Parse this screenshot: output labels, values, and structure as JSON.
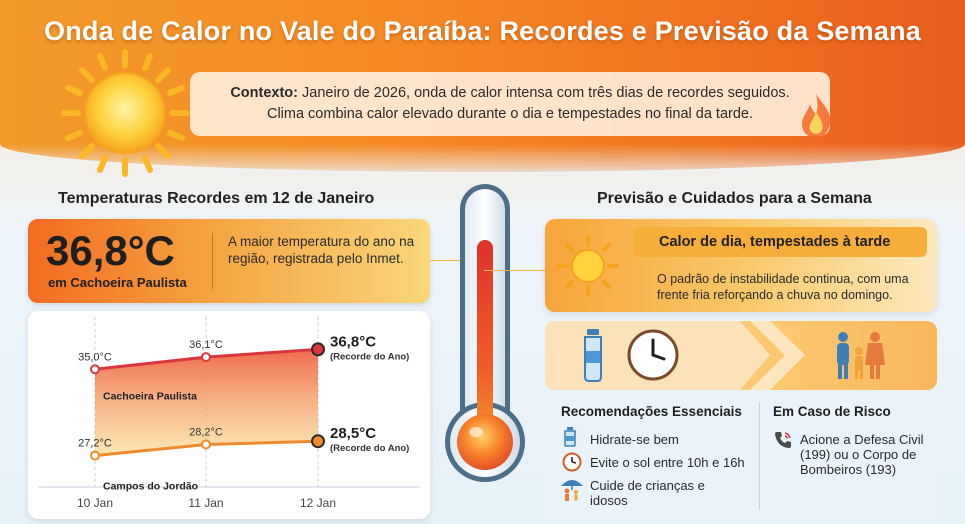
{
  "title": "Onda de Calor no Vale do Paraíba: Recordes e Previsão da Semana",
  "context": {
    "label": "Contexto:",
    "line1": "Janeiro de 2026, onda de calor intensa com três dias de recordes seguidos.",
    "line2": "Clima combina calor elevado durante o dia e tempestades no final da tarde."
  },
  "left": {
    "section_title": "Temperaturas Recordes em 12 de Janeiro",
    "record": {
      "value": "36,8°C",
      "city": "em Cachoeira Paulista",
      "desc": "A maior temperatura do ano na região, registrada pelo Inmet."
    }
  },
  "chart_data": {
    "type": "line",
    "categories": [
      "10 Jan",
      "11 Jan",
      "12 Jan"
    ],
    "series": [
      {
        "name": "Cachoeira Paulista",
        "values": [
          35.0,
          36.1,
          36.8
        ],
        "labels": [
          "35,0°C",
          "36,1°C",
          "36,8°C"
        ],
        "final_note": "(Recorde do Ano)",
        "color": "#d9363e"
      },
      {
        "name": "Campos do Jordão",
        "values": [
          27.2,
          28.2,
          28.5
        ],
        "labels": [
          "27,2°C",
          "28,2°C",
          "28,5°C"
        ],
        "final_note": "(Recorde do Ano)",
        "color": "#f08a2c"
      }
    ],
    "grid": true
  },
  "right": {
    "section_title": "Previsão e Cuidados para a Semana",
    "forecast": {
      "headline": "Calor de dia, tempestades à tarde",
      "body": "O padrão de instabilidade continua, com uma frente fria reforçando a chuva no domingo."
    },
    "recommendations": {
      "title": "Recomendações Essenciais",
      "items": [
        {
          "icon": "water-bottle-icon",
          "text": "Hidrate-se bem"
        },
        {
          "icon": "clock-icon",
          "text": "Evite o sol entre 10h e 16h"
        },
        {
          "icon": "family-umbrella-icon",
          "text": "Cuide de crianças e idosos"
        }
      ]
    },
    "risk": {
      "title": "Em Caso de Risco",
      "text": "Acione a Defesa Civil (199) ou o Corpo de Bombeiros (193)"
    }
  },
  "colors": {
    "header": "#f58a24",
    "record_red": "#d9363e",
    "record_orange": "#f08a2c",
    "panel_blue": "#eaf3fa"
  }
}
